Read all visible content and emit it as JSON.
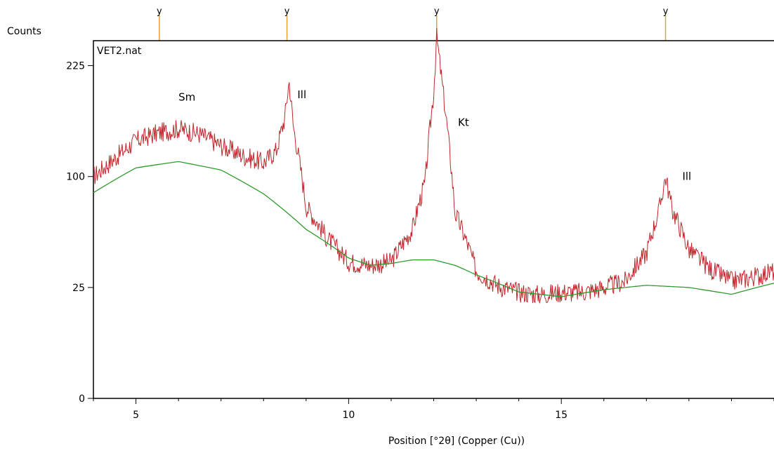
{
  "chart_data": {
    "type": "line",
    "title": "VET2.nat",
    "ylabel": "Counts",
    "xlabel": "Position [°2θ] (Copper (Cu))",
    "xlim": [
      4,
      20
    ],
    "ylim": [
      0,
      260
    ],
    "x_ticks": [
      5,
      10,
      15
    ],
    "y_ticks": [
      0,
      25,
      100,
      225
    ],
    "y_scale": "sqrt",
    "grid": false,
    "colors": {
      "observed": "#c0262b",
      "background": "#2e9a2e",
      "marker": "#e8a030",
      "axis": "#000000"
    },
    "peak_markers": [
      5.55,
      8.55,
      12.07,
      17.45
    ],
    "peak_marker_symbol": "y",
    "annotations": [
      {
        "text": "Sm",
        "x": 6.2,
        "y": 180
      },
      {
        "text": "Ill",
        "x": 8.9,
        "y": 183
      },
      {
        "text": "Kt",
        "x": 12.7,
        "y": 151
      },
      {
        "text": "Ill",
        "x": 17.95,
        "y": 97
      }
    ],
    "series": [
      {
        "role": "observed",
        "x": [
          4.0,
          4.5,
          5.0,
          5.5,
          6.0,
          6.5,
          7.0,
          7.5,
          8.0,
          8.3,
          8.5,
          8.6,
          8.7,
          9.0,
          9.5,
          10.0,
          10.5,
          11.0,
          11.5,
          11.8,
          12.0,
          12.07,
          12.2,
          12.5,
          13.0,
          13.5,
          14.0,
          14.5,
          15.0,
          15.5,
          16.0,
          16.5,
          17.0,
          17.3,
          17.45,
          17.6,
          18.0,
          18.5,
          19.0,
          19.5,
          20.0
        ],
        "y": [
          100,
          117,
          135,
          143,
          148,
          142,
          130,
          120,
          113,
          125,
          160,
          205,
          150,
          75,
          52,
          38,
          36,
          38,
          58,
          95,
          190,
          265,
          200,
          70,
          33,
          26,
          23,
          22,
          23,
          23,
          25,
          28,
          43,
          72,
          100,
          73,
          45,
          34,
          28,
          30,
          33
        ]
      },
      {
        "role": "background",
        "x": [
          4.0,
          5.0,
          6.0,
          7.0,
          8.0,
          9.0,
          10.0,
          10.5,
          11.0,
          11.5,
          12.0,
          12.5,
          13.0,
          14.0,
          15.0,
          16.0,
          17.0,
          18.0,
          19.0,
          20.0
        ],
        "y": [
          86,
          108,
          114,
          106,
          85,
          58,
          40,
          36,
          37,
          39,
          39,
          36,
          31,
          23,
          21,
          24,
          26,
          25,
          22,
          27
        ]
      }
    ]
  }
}
